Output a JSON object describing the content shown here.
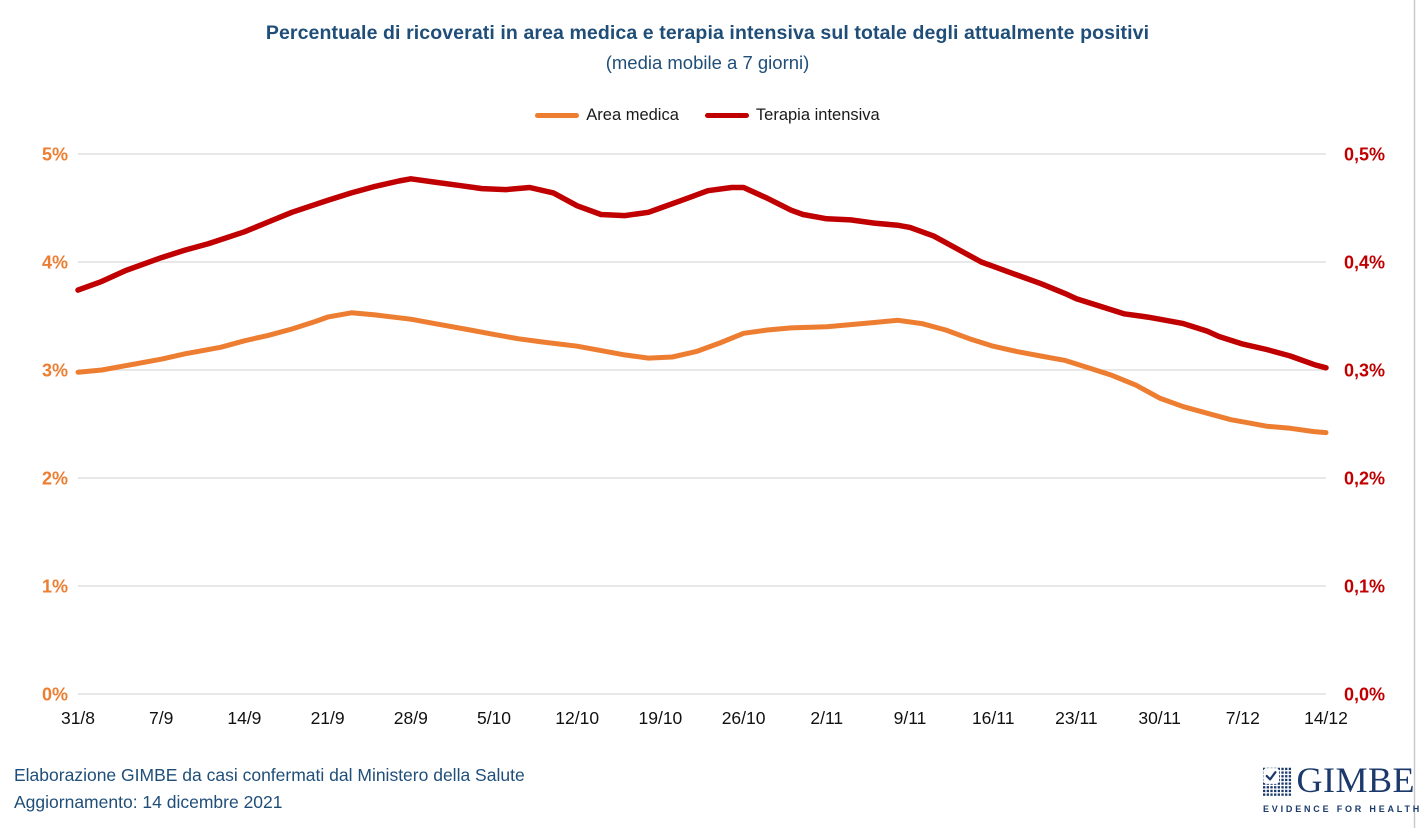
{
  "colors": {
    "title": "#1F4E79",
    "footer": "#1F4E79",
    "grid": "#D9D9D9",
    "page_edge": "#C9C9C9",
    "area_medica": "#ED7D31",
    "terapia_intensiva": "#C00000",
    "logo_blue": "#1B3A6B",
    "tick_text": "#111111"
  },
  "header": {
    "title": "Percentuale di ricoverati in area medica e terapia intensiva sul totale degli attualmente positivi",
    "subtitle": "(media mobile a 7 giorni)"
  },
  "footer": {
    "line1": "Elaborazione GIMBE da casi confermati dal Ministero della Salute",
    "line2": "Aggiornamento: 14 dicembre 2021"
  },
  "logo": {
    "wordmark": "GIMBE",
    "tagline": "EVIDENCE FOR HEALTH",
    "mark_icon": "dot-grid-checkmark-icon"
  },
  "chart_data": {
    "type": "line",
    "title": "Percentuale di ricoverati in area medica e terapia intensiva sul totale degli attualmente positivi",
    "subtitle": "(media mobile a 7 giorni)",
    "legend_position": "top",
    "grid": "horizontal-only",
    "x_tick_labels": [
      "31/8",
      "7/9",
      "14/9",
      "21/9",
      "28/9",
      "5/10",
      "12/10",
      "19/10",
      "26/10",
      "2/11",
      "9/11",
      "16/11",
      "23/11",
      "30/11",
      "7/12",
      "14/12"
    ],
    "x_days_per_tick": 7,
    "x_day_span": 105,
    "left_axis": {
      "ticks_top_to_bottom": [
        "5%",
        "4%",
        "3%",
        "2%",
        "1%",
        "0%"
      ],
      "range": [
        0,
        5
      ],
      "color": "#ED7D31",
      "series": "Area medica"
    },
    "right_axis": {
      "ticks_top_to_bottom": [
        "0,5%",
        "0,4%",
        "0,3%",
        "0,2%",
        "0,1%",
        "0,0%"
      ],
      "range": [
        0,
        0.5
      ],
      "color": "#C00000",
      "series": "Terapia intensiva"
    },
    "series": [
      {
        "name": "Area medica",
        "color": "#ED7D31",
        "axis": "left",
        "stroke_width": 5,
        "unit": "% of currently positive cases",
        "points_day_value": [
          [
            0,
            2.98
          ],
          [
            2,
            3.0
          ],
          [
            4,
            3.04
          ],
          [
            7,
            3.1
          ],
          [
            9,
            3.15
          ],
          [
            12,
            3.21
          ],
          [
            14,
            3.27
          ],
          [
            16,
            3.32
          ],
          [
            18,
            3.38
          ],
          [
            20,
            3.45
          ],
          [
            21,
            3.49
          ],
          [
            23,
            3.53
          ],
          [
            25,
            3.51
          ],
          [
            28,
            3.47
          ],
          [
            30,
            3.43
          ],
          [
            33,
            3.37
          ],
          [
            35,
            3.33
          ],
          [
            37,
            3.29
          ],
          [
            39,
            3.26
          ],
          [
            42,
            3.22
          ],
          [
            44,
            3.18
          ],
          [
            46,
            3.14
          ],
          [
            48,
            3.11
          ],
          [
            50,
            3.12
          ],
          [
            52,
            3.17
          ],
          [
            54,
            3.25
          ],
          [
            56,
            3.34
          ],
          [
            58,
            3.37
          ],
          [
            60,
            3.39
          ],
          [
            63,
            3.4
          ],
          [
            65,
            3.42
          ],
          [
            67,
            3.44
          ],
          [
            69,
            3.46
          ],
          [
            71,
            3.43
          ],
          [
            73,
            3.37
          ],
          [
            75,
            3.29
          ],
          [
            77,
            3.22
          ],
          [
            79,
            3.17
          ],
          [
            81,
            3.13
          ],
          [
            83,
            3.09
          ],
          [
            85,
            3.02
          ],
          [
            87,
            2.95
          ],
          [
            89,
            2.86
          ],
          [
            91,
            2.74
          ],
          [
            93,
            2.66
          ],
          [
            95,
            2.6
          ],
          [
            97,
            2.54
          ],
          [
            98,
            2.52
          ],
          [
            100,
            2.48
          ],
          [
            102,
            2.46
          ],
          [
            104,
            2.43
          ],
          [
            105,
            2.42
          ]
        ]
      },
      {
        "name": "Terapia intensiva",
        "color": "#C00000",
        "axis": "right",
        "stroke_width": 5.5,
        "unit": "% of currently positive cases",
        "points_day_value": [
          [
            0,
            0.374
          ],
          [
            2,
            0.382
          ],
          [
            4,
            0.392
          ],
          [
            7,
            0.404
          ],
          [
            9,
            0.411
          ],
          [
            11,
            0.417
          ],
          [
            14,
            0.428
          ],
          [
            16,
            0.437
          ],
          [
            18,
            0.446
          ],
          [
            21,
            0.457
          ],
          [
            23,
            0.464
          ],
          [
            25,
            0.47
          ],
          [
            27,
            0.475
          ],
          [
            28,
            0.477
          ],
          [
            30,
            0.474
          ],
          [
            32,
            0.471
          ],
          [
            34,
            0.468
          ],
          [
            36,
            0.467
          ],
          [
            38,
            0.469
          ],
          [
            40,
            0.464
          ],
          [
            42,
            0.452
          ],
          [
            44,
            0.444
          ],
          [
            46,
            0.443
          ],
          [
            48,
            0.446
          ],
          [
            49,
            0.45
          ],
          [
            51,
            0.458
          ],
          [
            53,
            0.466
          ],
          [
            55,
            0.469
          ],
          [
            56,
            0.469
          ],
          [
            58,
            0.459
          ],
          [
            60,
            0.448
          ],
          [
            61,
            0.444
          ],
          [
            63,
            0.44
          ],
          [
            65,
            0.439
          ],
          [
            67,
            0.436
          ],
          [
            69,
            0.434
          ],
          [
            70,
            0.432
          ],
          [
            72,
            0.424
          ],
          [
            74,
            0.412
          ],
          [
            76,
            0.4
          ],
          [
            77,
            0.396
          ],
          [
            79,
            0.388
          ],
          [
            81,
            0.38
          ],
          [
            83,
            0.371
          ],
          [
            84,
            0.366
          ],
          [
            86,
            0.359
          ],
          [
            88,
            0.352
          ],
          [
            90,
            0.349
          ],
          [
            91,
            0.347
          ],
          [
            93,
            0.343
          ],
          [
            95,
            0.336
          ],
          [
            96,
            0.331
          ],
          [
            98,
            0.324
          ],
          [
            100,
            0.319
          ],
          [
            102,
            0.313
          ],
          [
            104,
            0.305
          ],
          [
            105,
            0.302
          ]
        ]
      }
    ]
  }
}
